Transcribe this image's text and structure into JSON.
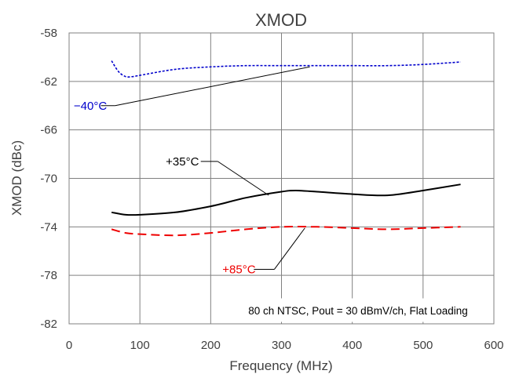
{
  "chart_data": {
    "type": "line",
    "title": "XMOD",
    "xlabel": "Frequency (MHz)",
    "ylabel": "XMOD (dBc)",
    "xlim": [
      0,
      600
    ],
    "ylim": [
      -82,
      -58
    ],
    "xticks": [
      0,
      100,
      200,
      300,
      400,
      500,
      600
    ],
    "yticks": [
      -58,
      -62,
      -66,
      -70,
      -74,
      -78,
      -82
    ],
    "grid": true,
    "series": [
      {
        "name": "−40°C",
        "color": "#0000cc",
        "dash": "dotted",
        "x": [
          60,
          70,
          80,
          90,
          100,
          150,
          200,
          250,
          300,
          350,
          400,
          450,
          500,
          553
        ],
        "y": [
          -60.3,
          -61.2,
          -61.6,
          -61.6,
          -61.5,
          -61.0,
          -60.8,
          -60.7,
          -60.7,
          -60.7,
          -60.7,
          -60.7,
          -60.6,
          -60.4
        ]
      },
      {
        "name": "+35°C",
        "color": "#000000",
        "dash": "solid",
        "x": [
          60,
          80,
          100,
          150,
          200,
          250,
          300,
          320,
          350,
          400,
          450,
          500,
          553
        ],
        "y": [
          -72.8,
          -73.0,
          -73.0,
          -72.8,
          -72.3,
          -71.6,
          -71.1,
          -71.0,
          -71.1,
          -71.3,
          -71.4,
          -71.0,
          -70.5
        ]
      },
      {
        "name": "+85°C",
        "color": "#ee0000",
        "dash": "dashed",
        "x": [
          60,
          80,
          100,
          150,
          200,
          250,
          300,
          350,
          400,
          450,
          500,
          553
        ],
        "y": [
          -74.2,
          -74.5,
          -74.6,
          -74.7,
          -74.5,
          -74.2,
          -74.0,
          -74.0,
          -74.1,
          -74.2,
          -74.1,
          -74.0
        ]
      }
    ],
    "annotations": [
      {
        "text": "−40°C",
        "color": "#0000cc",
        "label_at": [
          30,
          -64.0
        ],
        "line_from": [
          45,
          -64.0
        ],
        "line_to": [
          65,
          -64.0
        ],
        "arrow_to": [
          340,
          -60.8
        ]
      },
      {
        "text": "+35°C",
        "color": "#000000",
        "label_at": [
          160,
          -68.6
        ],
        "line_from": [
          186,
          -68.6
        ],
        "line_to": [
          210,
          -68.6
        ],
        "arrow_to": [
          282,
          -71.4
        ]
      },
      {
        "text": "+85°C",
        "color": "#ee0000",
        "label_at": [
          240,
          -77.5
        ],
        "line_from": [
          261,
          -77.5
        ],
        "line_to": [
          290,
          -77.5
        ],
        "arrow_to": [
          333,
          -74.1
        ]
      }
    ],
    "note": "80 ch NTSC, Pout = 30 dBmV/ch, Flat Loading"
  }
}
